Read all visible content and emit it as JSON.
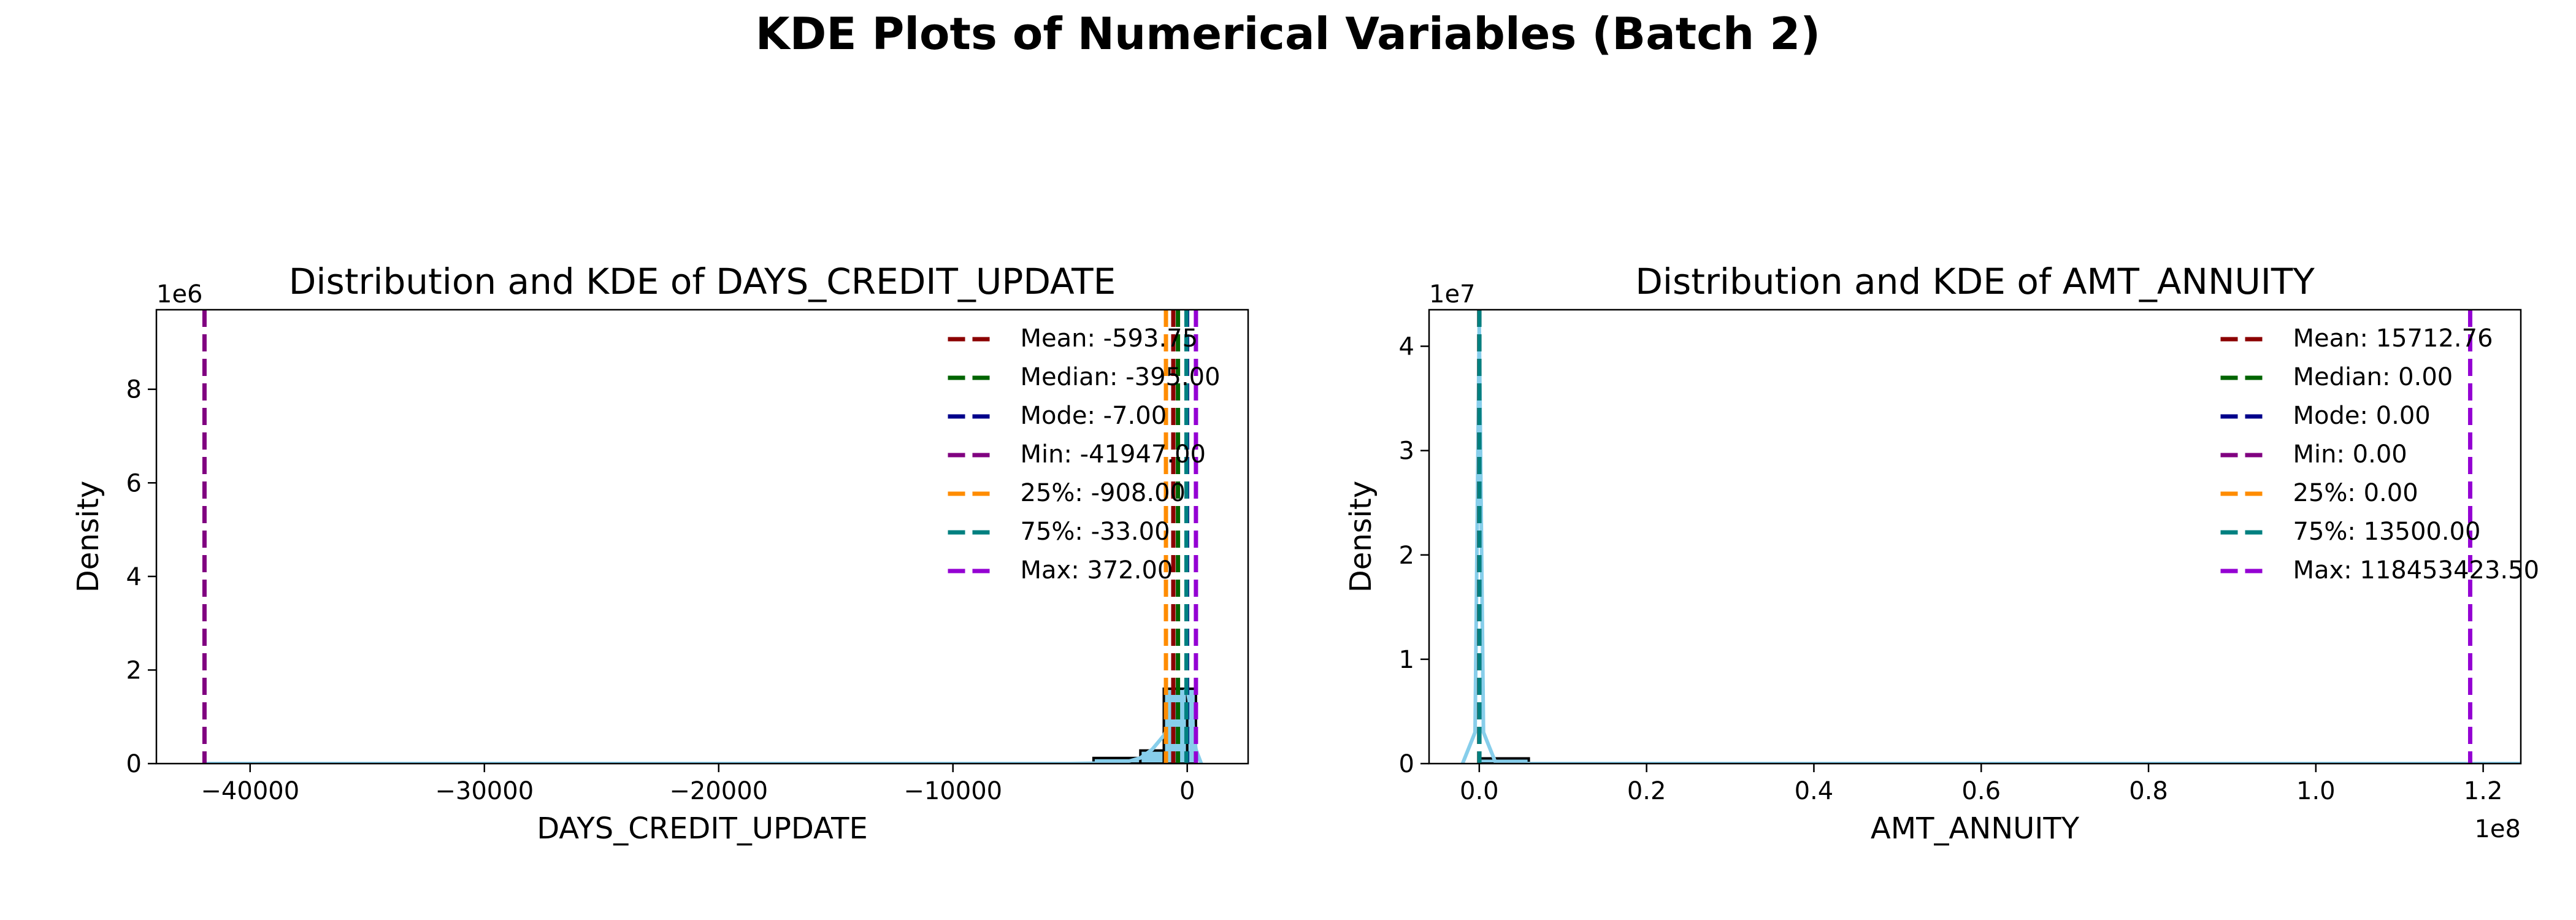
{
  "figure": {
    "suptitle": "KDE Plots of Numerical Variables (Batch 2)"
  },
  "chart_data": [
    {
      "type": "histogram",
      "title": "Distribution and KDE of DAYS_CREDIT_UPDATE",
      "xlabel": "DAYS_CREDIT_UPDATE",
      "ylabel": "Density",
      "y_offset_label": "1e6",
      "xlim": [
        -44000,
        2600
      ],
      "ylim": [
        0,
        9.7
      ],
      "xticks": [
        -40000,
        -30000,
        -20000,
        -10000,
        0
      ],
      "xtick_labels": [
        "−40000",
        "−30000",
        "−20000",
        "−10000",
        "0"
      ],
      "yticks": [
        0,
        2,
        4,
        6,
        8
      ],
      "ytick_labels": [
        "0",
        "2",
        "4",
        "6",
        "8"
      ],
      "bins": [
        {
          "x0": -41947,
          "x1": -40000,
          "value": 0
        },
        {
          "x0": -4000,
          "x1": -2000,
          "value": 0.12
        },
        {
          "x0": -2000,
          "x1": -1000,
          "value": 0.28
        },
        {
          "x0": -1000,
          "x1": 0,
          "value": 1.6
        },
        {
          "x0": 0,
          "x1": 372,
          "value": 1.6
        }
      ],
      "kde": [
        [
          -42000,
          0
        ],
        [
          -5000,
          0
        ],
        [
          -3500,
          0.01
        ],
        [
          -2500,
          0.05
        ],
        [
          -2000,
          0.12
        ],
        [
          -1500,
          0.3
        ],
        [
          -1000,
          0.6
        ],
        [
          -700,
          0.9
        ],
        [
          -400,
          1.2
        ],
        [
          -200,
          1.5
        ],
        [
          0,
          1.6
        ],
        [
          200,
          1.0
        ],
        [
          372,
          0.3
        ],
        [
          600,
          0
        ]
      ],
      "legend_position": "upper-right",
      "stat_lines": [
        {
          "label": "Mean: -593.75",
          "value": -593.75,
          "color": "#8b0000"
        },
        {
          "label": "Median: -395.00",
          "value": -395.0,
          "color": "#006400"
        },
        {
          "label": "Mode: -7.00",
          "value": -7.0,
          "color": "#00008b"
        },
        {
          "label": "Min: -41947.00",
          "value": -41947.0,
          "color": "#800080"
        },
        {
          "label": "25%: -908.00",
          "value": -908.0,
          "color": "#ff8c00"
        },
        {
          "label": "75%: -33.00",
          "value": -33.0,
          "color": "#008080"
        },
        {
          "label": "Max: 372.00",
          "value": 372.0,
          "color": "#9400d3"
        }
      ]
    },
    {
      "type": "histogram",
      "title": "Distribution and KDE of AMT_ANNUITY",
      "xlabel": "AMT_ANNUITY",
      "ylabel": "Density",
      "x_offset_label": "1e8",
      "y_offset_label": "1e7",
      "xlim": [
        -0.06,
        1.245
      ],
      "ylim": [
        0,
        4.35
      ],
      "xticks": [
        0,
        0.2,
        0.4,
        0.6,
        0.8,
        1.0,
        1.2
      ],
      "xtick_labels": [
        "0.0",
        "0.2",
        "0.4",
        "0.6",
        "0.8",
        "1.0",
        "1.2"
      ],
      "yticks": [
        0,
        1,
        2,
        3,
        4
      ],
      "ytick_labels": [
        "0",
        "1",
        "2",
        "3",
        "4"
      ],
      "bins": [
        {
          "x0": 0,
          "x1": 0.0592,
          "value": 0.05
        }
      ],
      "kde": [
        [
          -0.02,
          0
        ],
        [
          -0.005,
          0.3
        ],
        [
          0,
          4.2
        ],
        [
          0.005,
          0.3
        ],
        [
          0.02,
          0
        ],
        [
          1.245,
          0
        ]
      ],
      "legend_position": "upper-right",
      "stat_lines": [
        {
          "label": "Mean: 15712.76",
          "value": 0.000157,
          "color": "#8b0000"
        },
        {
          "label": "Median: 0.00",
          "value": 0.0,
          "color": "#006400"
        },
        {
          "label": "Mode: 0.00",
          "value": 0.0,
          "color": "#00008b"
        },
        {
          "label": "Min: 0.00",
          "value": 0.0,
          "color": "#800080"
        },
        {
          "label": "25%: 0.00",
          "value": 0.0,
          "color": "#ff8c00"
        },
        {
          "label": "75%: 13500.00",
          "value": 0.000135,
          "color": "#008080"
        },
        {
          "label": "Max: 118453423.50",
          "value": 1.1845,
          "color": "#9400d3"
        }
      ]
    }
  ],
  "style": {
    "bar_fill": "#87ceeb",
    "bar_edge": "#000000",
    "kde_color": "#87ceeb"
  }
}
